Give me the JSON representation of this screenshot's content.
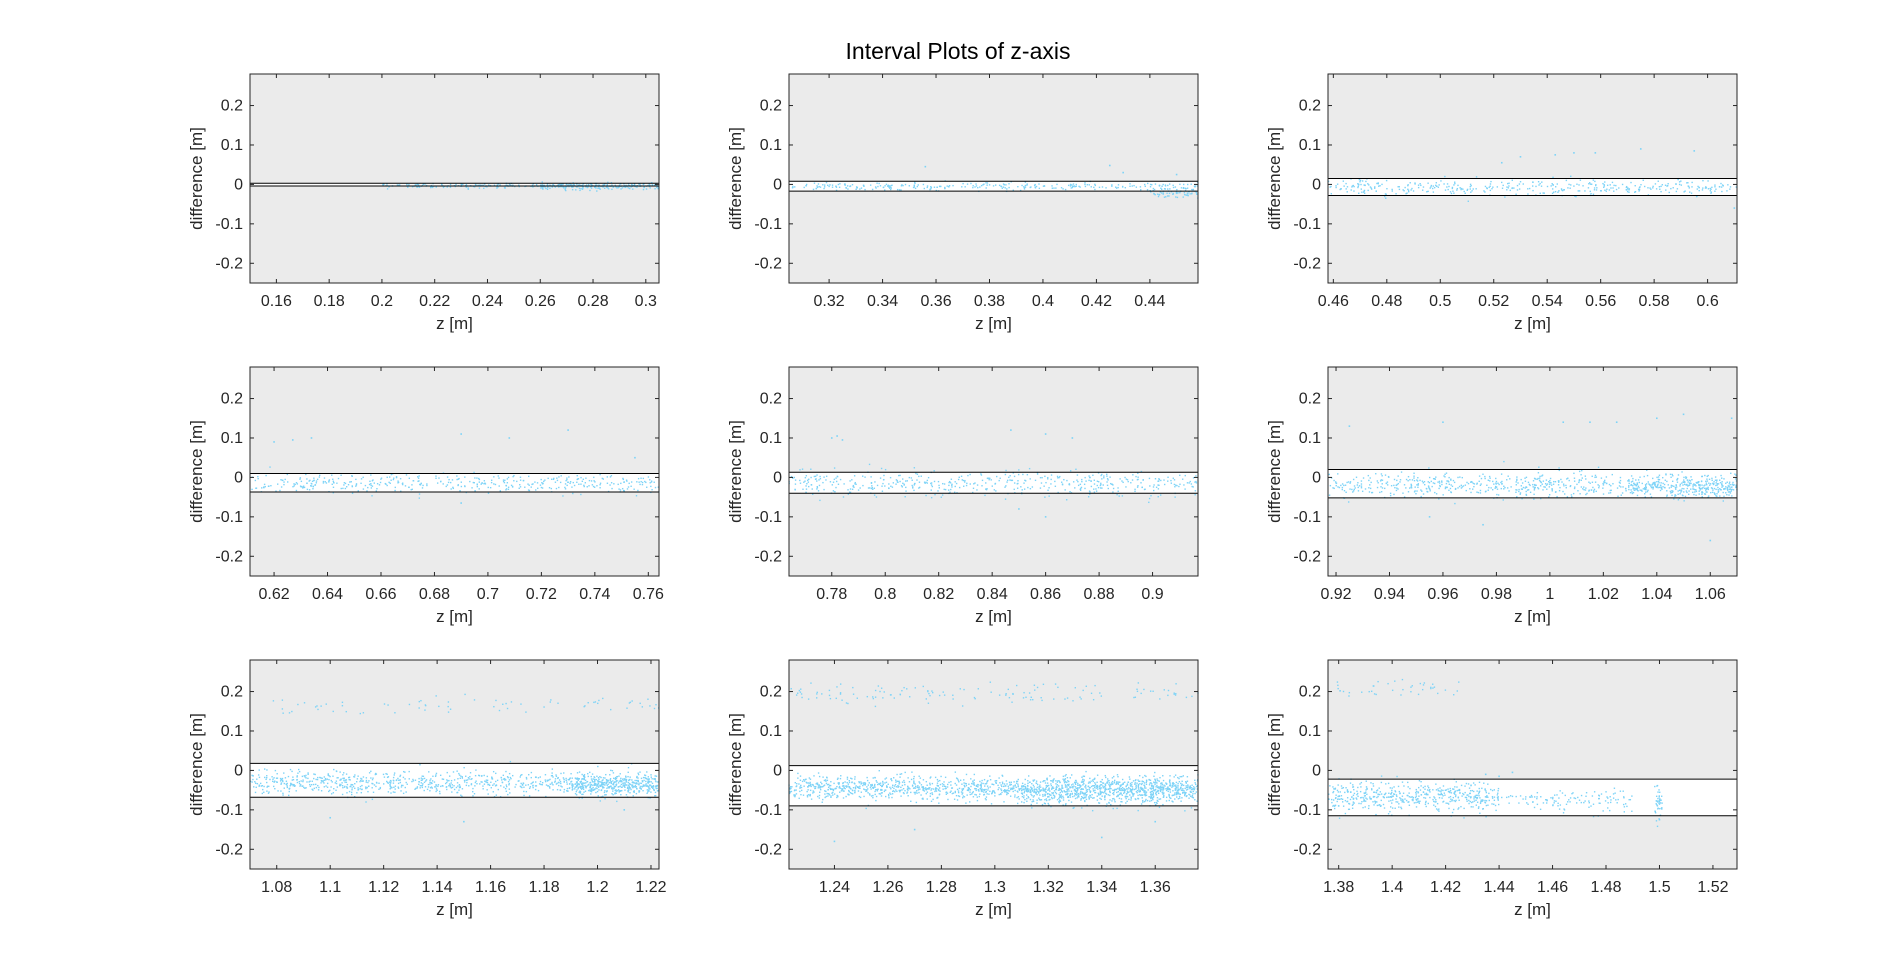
{
  "figure": {
    "title": "Interval Plots of z-axis"
  },
  "style": {
    "point_color": "#7dd3f7",
    "axes_background": "#ebebeb",
    "band_fill": "#ffffff",
    "line_color": "#000000",
    "axis_color": "#262626"
  },
  "chart_data": [
    {
      "type": "scatter",
      "xlabel": "z [m]",
      "ylabel": "difference [m]",
      "xlim": [
        0.15,
        0.305
      ],
      "ylim": [
        -0.25,
        0.28
      ],
      "xticks": [
        0.16,
        0.18,
        0.2,
        0.22,
        0.24,
        0.26,
        0.28,
        0.3
      ],
      "xtick_labels": [
        "0.16",
        "0.18",
        "0.2",
        "0.22",
        "0.24",
        "0.26",
        "0.28",
        "0.3"
      ],
      "yticks": [
        -0.2,
        -0.1,
        0,
        0.1,
        0.2
      ],
      "ytick_labels": [
        "-0.2",
        "-0.1",
        "0",
        "0.1",
        "0.2"
      ],
      "upper_line": 0.003,
      "lower_line": -0.004,
      "clusters": [
        {
          "x": [
            0.2,
            0.305
          ],
          "mean": -0.003,
          "sd": 0.003,
          "n": 250
        },
        {
          "x": [
            0.26,
            0.305
          ],
          "mean": -0.006,
          "sd": 0.004,
          "n": 120
        }
      ],
      "outliers": []
    },
    {
      "type": "scatter",
      "xlabel": "z [m]",
      "ylabel": "difference [m]",
      "xlim": [
        0.305,
        0.458
      ],
      "ylim": [
        -0.25,
        0.28
      ],
      "xticks": [
        0.32,
        0.34,
        0.36,
        0.38,
        0.4,
        0.42,
        0.44
      ],
      "xtick_labels": [
        "0.32",
        "0.34",
        "0.36",
        "0.38",
        "0.4",
        "0.42",
        "0.44"
      ],
      "yticks": [
        -0.2,
        -0.1,
        0,
        0.1,
        0.2
      ],
      "ytick_labels": [
        "-0.2",
        "-0.1",
        "0",
        "0.1",
        "0.2"
      ],
      "upper_line": 0.008,
      "lower_line": -0.017,
      "clusters": [
        {
          "x": [
            0.305,
            0.458
          ],
          "mean": -0.005,
          "sd": 0.005,
          "n": 280
        },
        {
          "x": [
            0.44,
            0.458
          ],
          "mean": -0.022,
          "sd": 0.006,
          "n": 60
        }
      ],
      "outliers": [
        [
          0.356,
          0.045
        ],
        [
          0.425,
          0.048
        ],
        [
          0.43,
          0.03
        ],
        [
          0.45,
          0.025
        ]
      ]
    },
    {
      "type": "scatter",
      "xlabel": "z [m]",
      "ylabel": "difference [m]",
      "xlim": [
        0.458,
        0.611
      ],
      "ylim": [
        -0.25,
        0.28
      ],
      "xticks": [
        0.46,
        0.48,
        0.5,
        0.52,
        0.54,
        0.56,
        0.58,
        0.6
      ],
      "xtick_labels": [
        "0.46",
        "0.48",
        "0.5",
        "0.52",
        "0.54",
        "0.56",
        "0.58",
        "0.6"
      ],
      "yticks": [
        -0.2,
        -0.1,
        0,
        0.1,
        0.2
      ],
      "ytick_labels": [
        "-0.2",
        "-0.1",
        "0",
        "0.1",
        "0.2"
      ],
      "upper_line": 0.015,
      "lower_line": -0.028,
      "clusters": [
        {
          "x": [
            0.458,
            0.611
          ],
          "mean": -0.008,
          "sd": 0.009,
          "n": 380
        }
      ],
      "outliers": [
        [
          0.53,
          0.07
        ],
        [
          0.543,
          0.075
        ],
        [
          0.55,
          0.08
        ],
        [
          0.558,
          0.08
        ],
        [
          0.575,
          0.09
        ],
        [
          0.595,
          0.085
        ],
        [
          0.523,
          0.055
        ],
        [
          0.61,
          -0.06
        ]
      ]
    },
    {
      "type": "scatter",
      "xlabel": "z [m]",
      "ylabel": "difference [m]",
      "xlim": [
        0.611,
        0.764
      ],
      "ylim": [
        -0.25,
        0.28
      ],
      "xticks": [
        0.62,
        0.64,
        0.66,
        0.68,
        0.7,
        0.72,
        0.74,
        0.76
      ],
      "xtick_labels": [
        "0.62",
        "0.64",
        "0.66",
        "0.68",
        "0.7",
        "0.72",
        "0.74",
        "0.76"
      ],
      "yticks": [
        -0.2,
        -0.1,
        0,
        0.1,
        0.2
      ],
      "ytick_labels": [
        "-0.2",
        "-0.1",
        "0",
        "0.1",
        "0.2"
      ],
      "upper_line": 0.01,
      "lower_line": -0.037,
      "clusters": [
        {
          "x": [
            0.611,
            0.764
          ],
          "mean": -0.015,
          "sd": 0.012,
          "n": 420
        }
      ],
      "outliers": [
        [
          0.62,
          0.09
        ],
        [
          0.627,
          0.095
        ],
        [
          0.634,
          0.1
        ],
        [
          0.69,
          0.11
        ],
        [
          0.708,
          0.1
        ],
        [
          0.73,
          0.12
        ],
        [
          0.69,
          -0.065
        ],
        [
          0.755,
          0.05
        ]
      ]
    },
    {
      "type": "scatter",
      "xlabel": "z [m]",
      "ylabel": "difference [m]",
      "xlim": [
        0.764,
        0.917
      ],
      "ylim": [
        -0.25,
        0.28
      ],
      "xticks": [
        0.78,
        0.8,
        0.82,
        0.84,
        0.86,
        0.88,
        0.9
      ],
      "xtick_labels": [
        "0.78",
        "0.8",
        "0.82",
        "0.84",
        "0.86",
        "0.88",
        "0.9"
      ],
      "yticks": [
        -0.2,
        -0.1,
        0,
        0.1,
        0.2
      ],
      "ytick_labels": [
        "-0.2",
        "-0.1",
        "0",
        "0.1",
        "0.2"
      ],
      "upper_line": 0.013,
      "lower_line": -0.04,
      "clusters": [
        {
          "x": [
            0.764,
            0.917
          ],
          "mean": -0.015,
          "sd": 0.015,
          "n": 480
        }
      ],
      "outliers": [
        [
          0.78,
          0.1
        ],
        [
          0.782,
          0.105
        ],
        [
          0.784,
          0.095
        ],
        [
          0.847,
          0.12
        ],
        [
          0.86,
          0.11
        ],
        [
          0.87,
          0.1
        ],
        [
          0.85,
          -0.08
        ],
        [
          0.86,
          -0.1
        ]
      ]
    },
    {
      "type": "scatter",
      "xlabel": "z [m]",
      "ylabel": "difference [m]",
      "xlim": [
        0.917,
        1.07
      ],
      "ylim": [
        -0.25,
        0.28
      ],
      "xticks": [
        0.92,
        0.94,
        0.96,
        0.98,
        1,
        1.02,
        1.04,
        1.06
      ],
      "xtick_labels": [
        "0.92",
        "0.94",
        "0.96",
        "0.98",
        "1",
        "1.02",
        "1.04",
        "1.06"
      ],
      "yticks": [
        -0.2,
        -0.1,
        0,
        0.1,
        0.2
      ],
      "ytick_labels": [
        "-0.2",
        "-0.1",
        "0",
        "0.1",
        "0.2"
      ],
      "upper_line": 0.02,
      "lower_line": -0.052,
      "clusters": [
        {
          "x": [
            0.917,
            1.07
          ],
          "mean": -0.02,
          "sd": 0.016,
          "n": 650
        },
        {
          "x": [
            1.03,
            1.07
          ],
          "mean": -0.025,
          "sd": 0.012,
          "n": 220
        }
      ],
      "outliers": [
        [
          0.925,
          0.13
        ],
        [
          0.96,
          0.14
        ],
        [
          1.005,
          0.14
        ],
        [
          1.015,
          0.14
        ],
        [
          1.025,
          0.14
        ],
        [
          1.04,
          0.15
        ],
        [
          1.05,
          0.16
        ],
        [
          1.068,
          0.15
        ],
        [
          0.975,
          -0.12
        ],
        [
          1.06,
          -0.16
        ],
        [
          0.955,
          -0.1
        ]
      ]
    },
    {
      "type": "scatter",
      "xlabel": "z [m]",
      "ylabel": "difference [m]",
      "xlim": [
        1.07,
        1.223
      ],
      "ylim": [
        -0.25,
        0.28
      ],
      "xticks": [
        1.08,
        1.1,
        1.12,
        1.14,
        1.16,
        1.18,
        1.2,
        1.22
      ],
      "xtick_labels": [
        "1.08",
        "1.1",
        "1.12",
        "1.14",
        "1.16",
        "1.18",
        "1.2",
        "1.22"
      ],
      "yticks": [
        -0.2,
        -0.1,
        0,
        0.1,
        0.2
      ],
      "ytick_labels": [
        "-0.2",
        "-0.1",
        "0",
        "0.1",
        "0.2"
      ],
      "upper_line": 0.018,
      "lower_line": -0.068,
      "clusters": [
        {
          "x": [
            1.07,
            1.223
          ],
          "mean": -0.032,
          "sd": 0.015,
          "n": 900
        },
        {
          "x": [
            1.19,
            1.223
          ],
          "mean": -0.04,
          "sd": 0.012,
          "n": 300
        },
        {
          "x": [
            1.075,
            1.223
          ],
          "mean": 0.165,
          "sd": 0.012,
          "n": 70
        }
      ],
      "outliers": [
        [
          1.1,
          -0.12
        ],
        [
          1.15,
          -0.13
        ],
        [
          1.21,
          -0.1
        ]
      ]
    },
    {
      "type": "scatter",
      "xlabel": "z [m]",
      "ylabel": "difference [m]",
      "xlim": [
        1.223,
        1.376
      ],
      "ylim": [
        -0.25,
        0.28
      ],
      "xticks": [
        1.24,
        1.26,
        1.28,
        1.3,
        1.32,
        1.34,
        1.36
      ],
      "xtick_labels": [
        "1.24",
        "1.26",
        "1.28",
        "1.3",
        "1.32",
        "1.34",
        "1.36"
      ],
      "yticks": [
        -0.2,
        -0.1,
        0,
        0.1,
        0.2
      ],
      "ytick_labels": [
        "-0.2",
        "-0.1",
        "0",
        "0.1",
        "0.2"
      ],
      "upper_line": 0.012,
      "lower_line": -0.09,
      "clusters": [
        {
          "x": [
            1.223,
            1.376
          ],
          "mean": -0.045,
          "sd": 0.015,
          "n": 1300
        },
        {
          "x": [
            1.31,
            1.376
          ],
          "mean": -0.055,
          "sd": 0.016,
          "n": 500
        },
        {
          "x": [
            1.223,
            1.376
          ],
          "mean": 0.195,
          "sd": 0.012,
          "n": 130
        }
      ],
      "outliers": [
        [
          1.24,
          -0.18
        ],
        [
          1.27,
          -0.15
        ],
        [
          1.34,
          -0.17
        ],
        [
          1.36,
          -0.13
        ]
      ]
    },
    {
      "type": "scatter",
      "xlabel": "z [m]",
      "ylabel": "difference [m]",
      "xlim": [
        1.376,
        1.529
      ],
      "ylim": [
        -0.25,
        0.28
      ],
      "xticks": [
        1.38,
        1.4,
        1.42,
        1.44,
        1.46,
        1.48,
        1.5,
        1.52
      ],
      "xtick_labels": [
        "1.38",
        "1.4",
        "1.42",
        "1.44",
        "1.46",
        "1.48",
        "1.5",
        "1.52"
      ],
      "yticks": [
        -0.2,
        -0.1,
        0,
        0.1,
        0.2
      ],
      "ytick_labels": [
        "-0.2",
        "-0.1",
        "0",
        "0.1",
        "0.2"
      ],
      "upper_line": -0.022,
      "lower_line": -0.115,
      "clusters": [
        {
          "x": [
            1.376,
            1.44
          ],
          "mean": -0.065,
          "sd": 0.018,
          "n": 500
        },
        {
          "x": [
            1.44,
            1.49
          ],
          "mean": -0.075,
          "sd": 0.015,
          "n": 120
        },
        {
          "x": [
            1.498,
            1.501
          ],
          "mean": -0.085,
          "sd": 0.02,
          "n": 40
        },
        {
          "x": [
            1.376,
            1.425
          ],
          "mean": 0.21,
          "sd": 0.012,
          "n": 40
        }
      ],
      "outliers": [
        [
          1.435,
          -0.01
        ],
        [
          1.44,
          -0.015
        ],
        [
          1.445,
          -0.005
        ],
        [
          1.5,
          -0.125
        ],
        [
          1.38,
          -0.09
        ]
      ]
    }
  ]
}
